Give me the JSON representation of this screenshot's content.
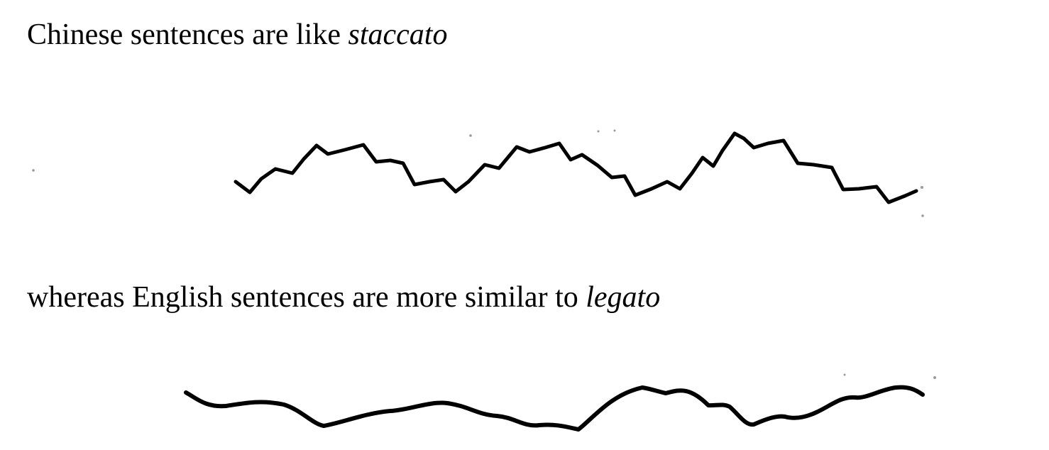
{
  "staccato": {
    "text": "Chinese sentences are like ",
    "emphasis": "staccato"
  },
  "legato": {
    "text": "whereas English sentences are more similar to ",
    "emphasis": "legato"
  },
  "colors": {
    "ink": "#000000",
    "background": "#ffffff"
  }
}
